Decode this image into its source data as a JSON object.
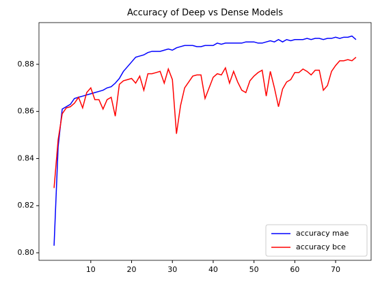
{
  "chart_data": {
    "type": "line",
    "title": "Accuracy of Deep vs Dense Models",
    "x": [
      1,
      2,
      3,
      4,
      5,
      6,
      7,
      8,
      9,
      10,
      11,
      12,
      13,
      14,
      15,
      16,
      17,
      18,
      19,
      20,
      21,
      22,
      23,
      24,
      25,
      26,
      27,
      28,
      29,
      30,
      31,
      32,
      33,
      34,
      35,
      36,
      37,
      38,
      39,
      40,
      41,
      42,
      43,
      44,
      45,
      46,
      47,
      48,
      49,
      50,
      51,
      52,
      53,
      54,
      55,
      56,
      57,
      58,
      59,
      60,
      61,
      62,
      63,
      64,
      65,
      66,
      67,
      68,
      69,
      70,
      71,
      72,
      73,
      74,
      75
    ],
    "series": [
      {
        "name": "accuracy mae",
        "color": "#0000ff",
        "values": [
          0.803,
          0.845,
          0.861,
          0.862,
          0.863,
          0.8655,
          0.866,
          0.8665,
          0.867,
          0.8675,
          0.868,
          0.8685,
          0.869,
          0.87,
          0.8705,
          0.872,
          0.874,
          0.877,
          0.879,
          0.881,
          0.883,
          0.8835,
          0.884,
          0.885,
          0.8855,
          0.8855,
          0.8855,
          0.886,
          0.8865,
          0.886,
          0.887,
          0.8875,
          0.888,
          0.888,
          0.888,
          0.8875,
          0.8875,
          0.888,
          0.888,
          0.888,
          0.889,
          0.8885,
          0.889,
          0.889,
          0.889,
          0.889,
          0.889,
          0.8895,
          0.8895,
          0.8895,
          0.889,
          0.889,
          0.8895,
          0.89,
          0.8895,
          0.8905,
          0.8895,
          0.8905,
          0.89,
          0.8905,
          0.8905,
          0.8905,
          0.891,
          0.8905,
          0.891,
          0.891,
          0.8905,
          0.891,
          0.891,
          0.8915,
          0.891,
          0.8915,
          0.8915,
          0.892,
          0.8905
        ]
      },
      {
        "name": "accuracy bce",
        "color": "#ff0000",
        "values": [
          0.8275,
          0.848,
          0.859,
          0.8615,
          0.862,
          0.8635,
          0.866,
          0.8615,
          0.868,
          0.87,
          0.865,
          0.865,
          0.861,
          0.865,
          0.866,
          0.858,
          0.8715,
          0.873,
          0.8735,
          0.874,
          0.872,
          0.875,
          0.869,
          0.876,
          0.876,
          0.8765,
          0.877,
          0.872,
          0.878,
          0.8735,
          0.8505,
          0.8625,
          0.87,
          0.8725,
          0.875,
          0.8755,
          0.8755,
          0.8655,
          0.87,
          0.8745,
          0.876,
          0.8755,
          0.8785,
          0.872,
          0.877,
          0.8725,
          0.869,
          0.868,
          0.873,
          0.875,
          0.8765,
          0.8775,
          0.8665,
          0.877,
          0.87,
          0.862,
          0.8695,
          0.8725,
          0.8735,
          0.8765,
          0.8765,
          0.878,
          0.877,
          0.8755,
          0.8775,
          0.8775,
          0.869,
          0.871,
          0.877,
          0.8795,
          0.8815,
          0.8815,
          0.882,
          0.8815,
          0.883
        ]
      }
    ],
    "xlim": [
      -2.7,
      78.7
    ],
    "xticks": [
      10,
      20,
      30,
      40,
      50,
      60,
      70
    ],
    "ylim": [
      0.7968,
      0.8977
    ],
    "yticks": [
      {
        "value": 0.8,
        "label": "0.80"
      },
      0.82,
      0.84,
      0.86,
      0.88
    ],
    "legend": "lower right"
  }
}
